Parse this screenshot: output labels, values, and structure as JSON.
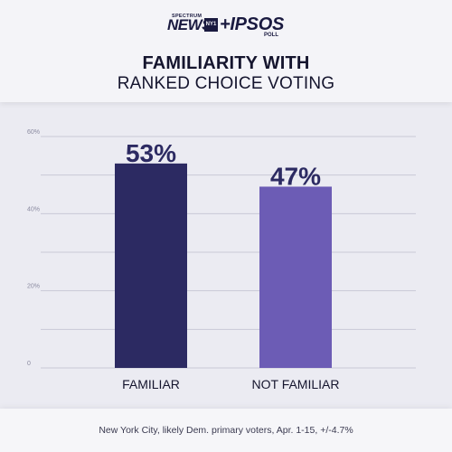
{
  "header": {
    "logo": {
      "spectrum": "SPECTRUM",
      "news": "NEWS",
      "ny1": "NY1",
      "ipsos": "+IPSOS",
      "poll": "POLL"
    },
    "title_line1": "FAMILIARITY WITH",
    "title_line2": "RANKED CHOICE VOTING"
  },
  "footnote": "New York City, likely Dem. primary voters, Apr. 1-15, +/-4.7%",
  "colors": {
    "familiar_bar": "#2c2a62",
    "not_familiar_bar": "#6c5cb5",
    "grid": "#c9c9d6",
    "text": "#15152e"
  },
  "chart_data": {
    "type": "bar",
    "title": "FAMILIARITY WITH RANKED CHOICE VOTING",
    "categories": [
      "FAMILIAR",
      "NOT FAMILIAR"
    ],
    "values": [
      53,
      47
    ],
    "value_labels": [
      "53%",
      "47%"
    ],
    "bar_colors": [
      "#2c2a62",
      "#6c5cb5"
    ],
    "ylim": [
      0,
      60
    ],
    "yticks": [
      0,
      20,
      40,
      60
    ],
    "ytick_labels": [
      "0",
      "20%",
      "40%",
      "60%"
    ],
    "gridlines": [
      0,
      10,
      20,
      30,
      40,
      50,
      60
    ],
    "grid": true,
    "xlabel": "",
    "ylabel": ""
  }
}
